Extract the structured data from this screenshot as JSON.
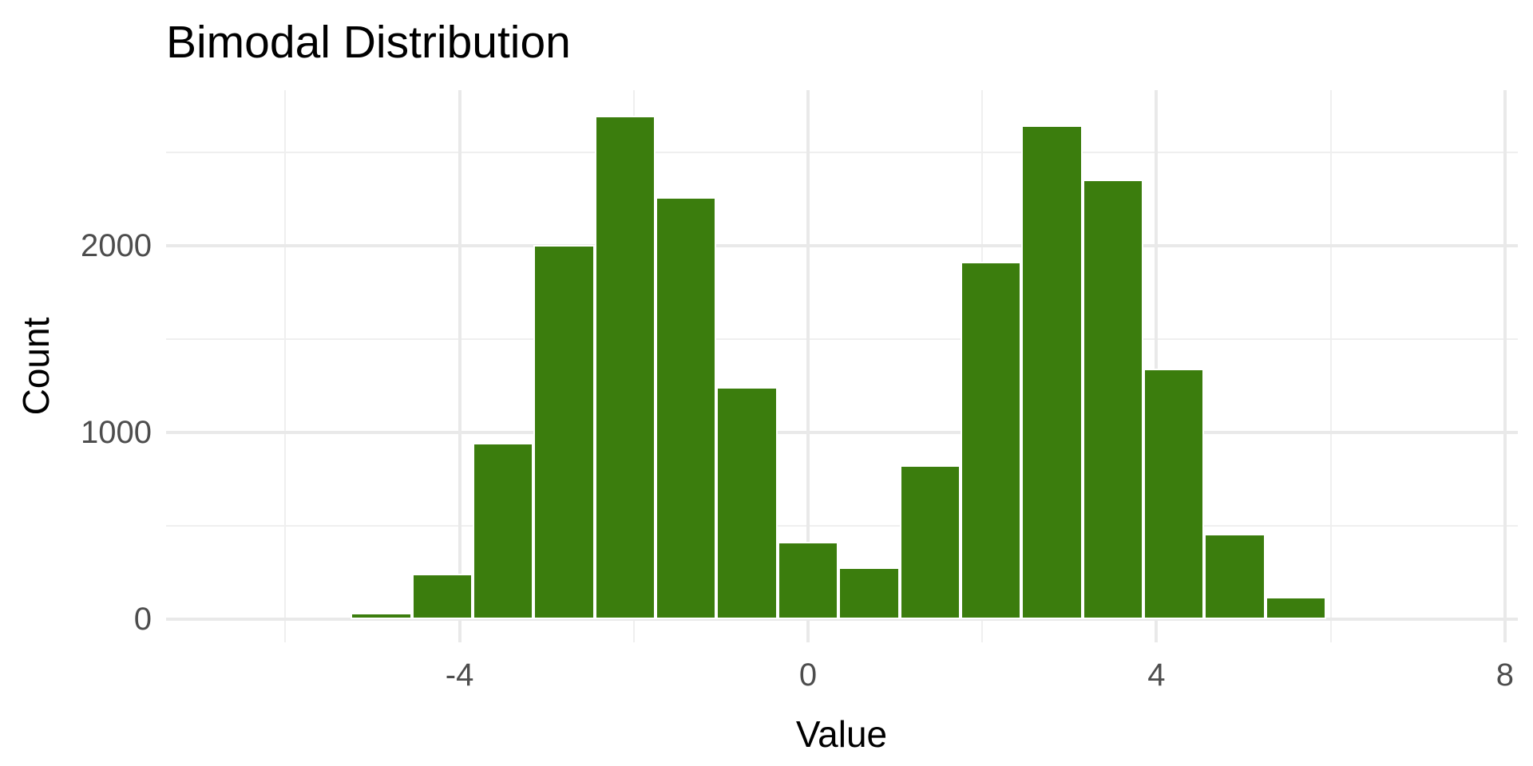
{
  "title": "Bimodal Distribution",
  "chart_data": {
    "type": "bar",
    "subtype": "histogram",
    "title": "Bimodal Distribution",
    "xlabel": "Value",
    "ylabel": "Count",
    "bin_width": 0.7,
    "bin_edges": [
      -5.25,
      -4.55,
      -3.85,
      -3.15,
      -2.45,
      -1.75,
      -1.05,
      -0.35,
      0.35,
      1.05,
      1.75,
      2.45,
      3.15,
      3.85,
      4.55,
      5.25,
      5.95
    ],
    "counts": [
      35,
      244,
      944,
      2005,
      2697,
      2262,
      1244,
      415,
      278,
      826,
      1913,
      2647,
      2355,
      1343,
      456,
      118
    ],
    "x_major_ticks": [
      -4,
      0,
      4,
      8
    ],
    "x_major_tick_labels": [
      "-4",
      "0",
      "4",
      "8"
    ],
    "x_minor_ticks": [
      -6,
      -2,
      2,
      6
    ],
    "y_major_ticks": [
      0,
      1000,
      2000
    ],
    "y_major_tick_labels": [
      "0",
      "1000",
      "2000"
    ],
    "y_minor_ticks": [
      500,
      1500,
      2500
    ],
    "xlim": [
      -7.369,
      8.148
    ],
    "ylim": [
      -124,
      2833
    ],
    "grid": true,
    "legend": "none",
    "colors": {
      "bar_fill": "#3b7d0d",
      "bar_border": "#ffffff",
      "grid_major": "#e9e9e9",
      "grid_minor": "#efefef",
      "tick_label": "#4d4d4d",
      "axis_title": "#000000",
      "title": "#000000",
      "background": "#ffffff"
    }
  }
}
